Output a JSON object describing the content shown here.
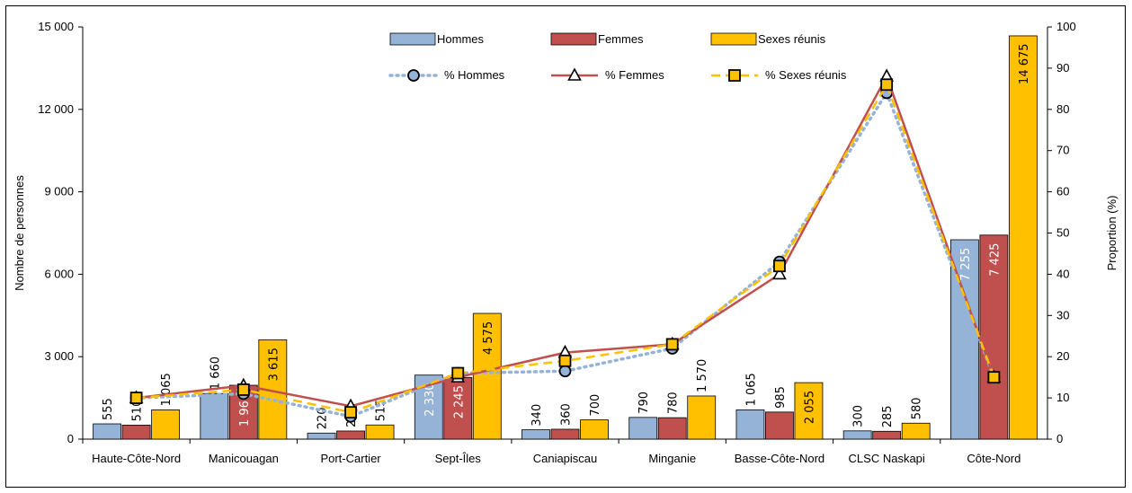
{
  "chart_data": {
    "type": "bar",
    "categories": [
      "Haute-Côte-Nord",
      "Manicouagan",
      "Port-Cartier",
      "Sept-Îles",
      "Caniapiscau",
      "Minganie",
      "Basse-Côte-Nord",
      "CLSC Naskapi",
      "Côte-Nord"
    ],
    "series": [
      {
        "name": "Hommes",
        "kind": "bar",
        "color": "#95B3D7",
        "values": [
          555,
          1660,
          220,
          2330,
          340,
          790,
          1065,
          300,
          7255
        ],
        "labels": [
          "555",
          "1 660",
          "220",
          "2 330",
          "340",
          "790",
          "1 065",
          "300",
          "7 255"
        ]
      },
      {
        "name": "Femmes",
        "kind": "bar",
        "color": "#C0504D",
        "values": [
          510,
          1960,
          295,
          2245,
          360,
          780,
          985,
          285,
          7425
        ],
        "labels": [
          "510",
          "1 960",
          "295",
          "2 245",
          "360",
          "780",
          "985",
          "285",
          "7 425"
        ]
      },
      {
        "name": "Sexes réunis",
        "kind": "bar",
        "color": "#FFC000",
        "values": [
          1065,
          3615,
          515,
          4575,
          700,
          1570,
          2055,
          580,
          14675
        ],
        "labels": [
          "1 065",
          "3 615",
          "515",
          "4 575",
          "700",
          "1 570",
          "2 055",
          "580",
          "14 675"
        ]
      },
      {
        "name": "% Hommes",
        "kind": "line",
        "axis": "right",
        "color": "#95B3D7",
        "values": [
          10,
          11,
          5.5,
          16,
          16.5,
          22,
          43,
          84,
          15
        ]
      },
      {
        "name": "% Femmes",
        "kind": "line",
        "axis": "right",
        "color": "#C0504D",
        "values": [
          10,
          13,
          8,
          15,
          21,
          23,
          40,
          88,
          15
        ]
      },
      {
        "name": "% Sexes réunis",
        "kind": "line",
        "axis": "right",
        "color": "#FFC000",
        "values": [
          10,
          12,
          6.5,
          16,
          19,
          23,
          42,
          86,
          15
        ]
      }
    ],
    "ylabel": "Nombre de personnes",
    "y2label": "Proportion (%)",
    "ylim": [
      0,
      15000
    ],
    "y2lim": [
      0,
      100
    ],
    "yticks": [
      "0",
      "3 000",
      "6 000",
      "9 000",
      "12 000",
      "15 000"
    ],
    "yticks_values": [
      0,
      3000,
      6000,
      9000,
      12000,
      15000
    ],
    "y2ticks": [
      "0",
      "10",
      "20",
      "30",
      "40",
      "50",
      "60",
      "70",
      "80",
      "90",
      "100"
    ],
    "y2ticks_values": [
      0,
      10,
      20,
      30,
      40,
      50,
      60,
      70,
      80,
      90,
      100
    ],
    "legend": "top-center",
    "grid": false
  }
}
